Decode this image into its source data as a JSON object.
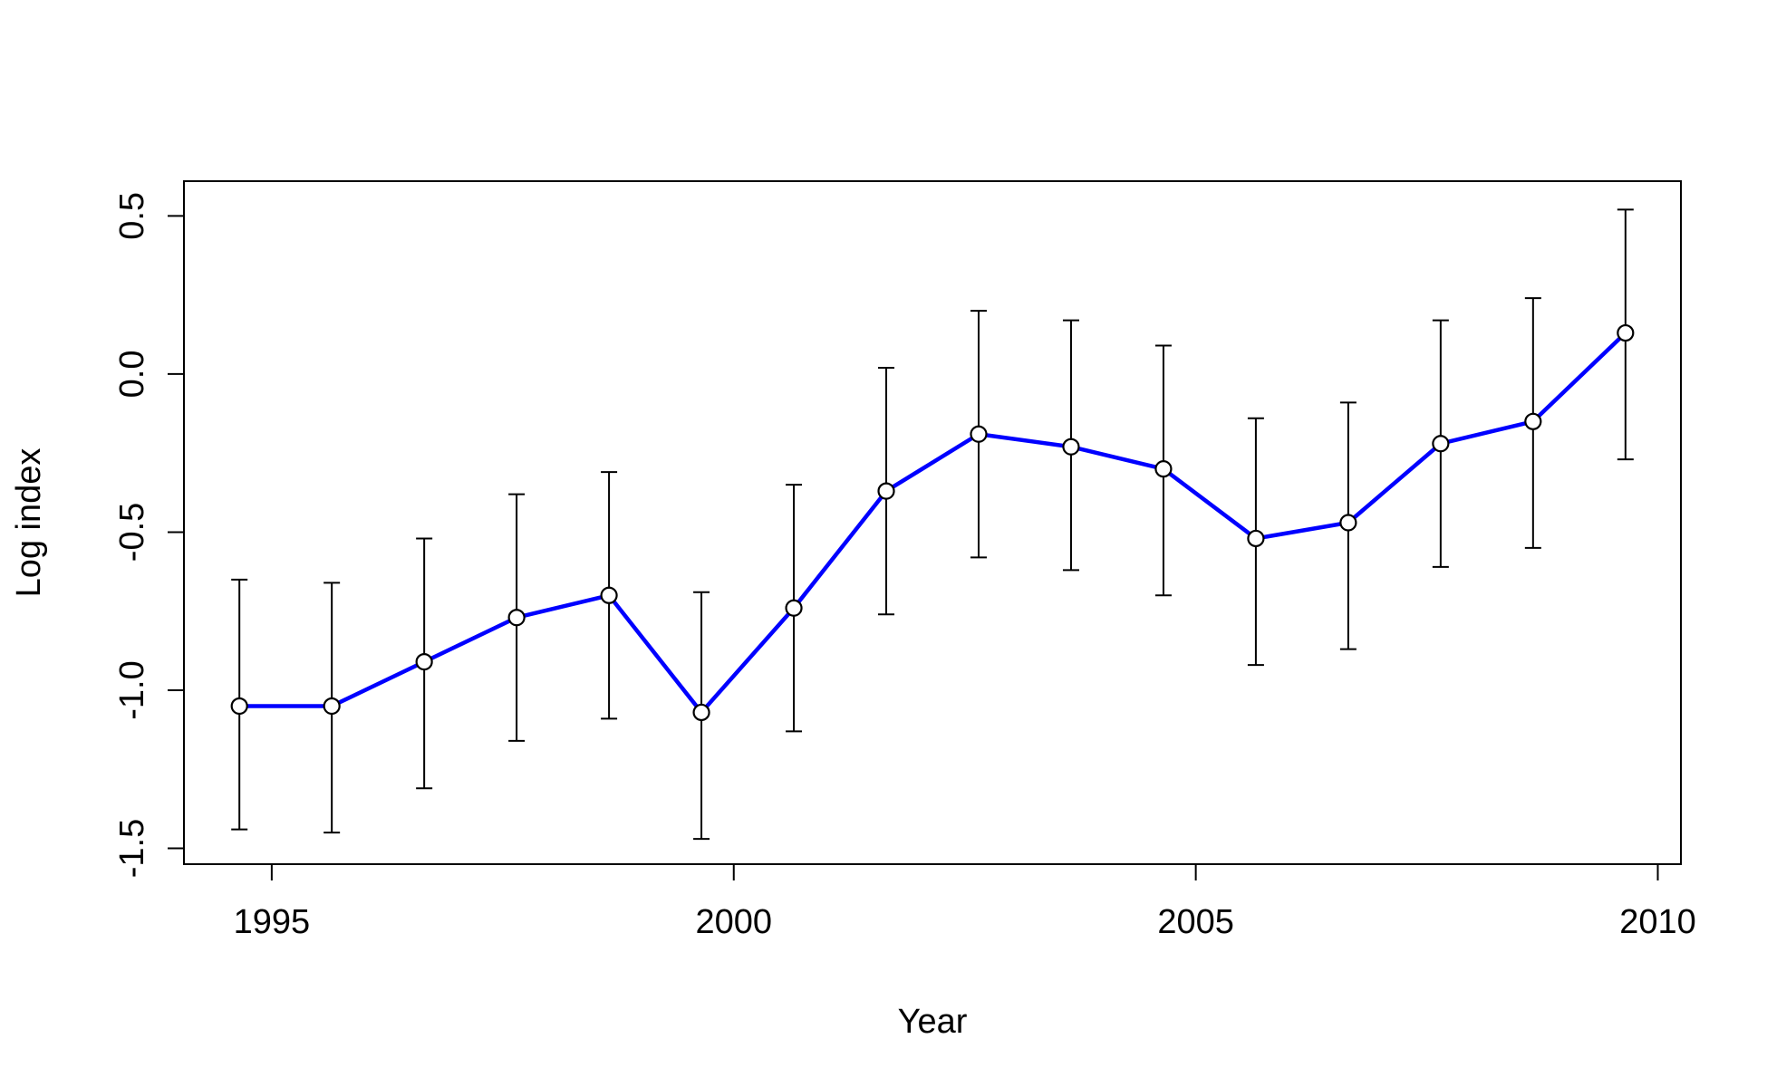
{
  "chart_data": {
    "type": "line",
    "title": "",
    "xlabel": "Year",
    "ylabel": "Log index",
    "xlim": [
      1994.05,
      2010.25
    ],
    "ylim": [
      -1.55,
      0.61
    ],
    "x_ticks": [
      1995,
      2000,
      2005,
      2010
    ],
    "y_ticks": [
      -1.5,
      -1.0,
      -0.5,
      0.0,
      0.5
    ],
    "x_tick_labels": [
      "1995",
      "2000",
      "2005",
      "2010"
    ],
    "y_tick_labels": [
      "-1.5",
      "-1.0",
      "-0.5",
      "0.0",
      "0.5"
    ],
    "grid": false,
    "legend": "none",
    "line_color": "#0000ff",
    "marker": "open-circle",
    "series": [
      {
        "x": [
          1994.65,
          1995.65,
          1996.65,
          1997.65,
          1998.65,
          1999.65,
          2000.65,
          2001.65,
          2002.65,
          2003.65,
          2004.65,
          2005.65,
          2006.65,
          2007.65,
          2008.65,
          2009.65
        ],
        "y": [
          -1.05,
          -1.05,
          -0.91,
          -0.77,
          -0.7,
          -1.07,
          -0.74,
          -0.37,
          -0.19,
          -0.23,
          -0.3,
          -0.52,
          -0.47,
          -0.22,
          -0.15,
          0.13
        ],
        "lower": [
          -1.44,
          -1.45,
          -1.31,
          -1.16,
          -1.09,
          -1.47,
          -1.13,
          -0.76,
          -0.58,
          -0.62,
          -0.7,
          -0.92,
          -0.87,
          -0.61,
          -0.55,
          -0.27
        ],
        "upper": [
          -0.65,
          -0.66,
          -0.52,
          -0.38,
          -0.31,
          -0.69,
          -0.35,
          0.02,
          0.2,
          0.17,
          0.09,
          -0.14,
          -0.09,
          0.17,
          0.24,
          0.52
        ]
      }
    ]
  }
}
